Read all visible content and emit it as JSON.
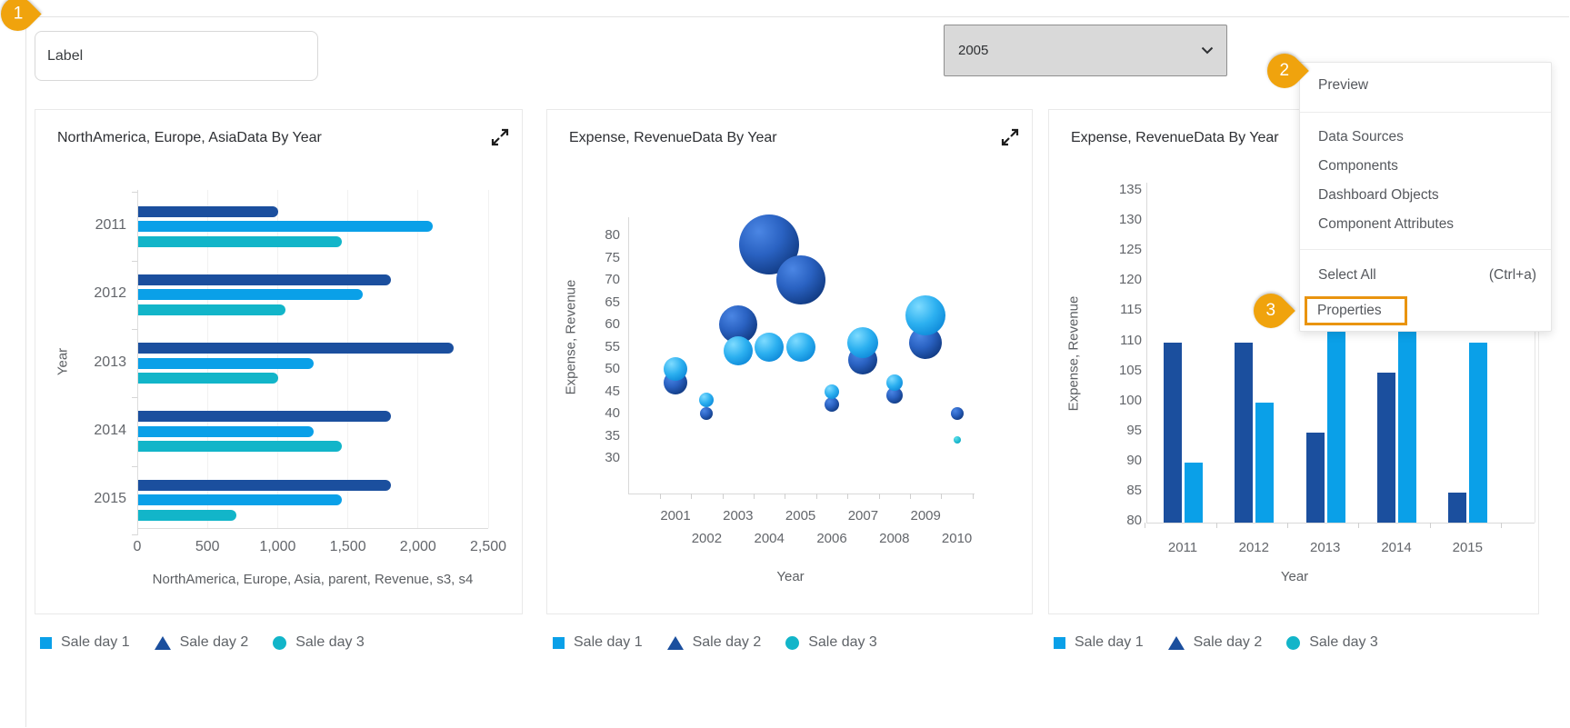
{
  "ui": {
    "topbar": {
      "label_input_value": "Label",
      "year_select_value": "2005"
    },
    "annotations": {
      "badge1": "1",
      "badge2": "2",
      "badge3": "3",
      "badge_color": "#f0a30d"
    },
    "context_menu": {
      "preview": "Preview",
      "items_middle": [
        "Data Sources",
        "Components",
        "Dashboard Objects",
        "Component Attributes"
      ],
      "select_all": "Select All",
      "select_all_shortcut": "(Ctrl+a)",
      "properties": "Properties",
      "highlight_color": "#e9940f"
    },
    "legend_items": [
      {
        "label": "Sale day 1",
        "shape": "square",
        "color": "#0aa0e8"
      },
      {
        "label": "Sale day 2",
        "shape": "triangle",
        "color": "#1b4f9e"
      },
      {
        "label": "Sale day 3",
        "shape": "circle",
        "color": "#12b5c9"
      }
    ]
  },
  "charts": [
    {
      "title": "NorthAmerica, Europe, AsiaData By Year",
      "y_axis_label": "Year",
      "x_axis_label": "NorthAmerica, Europe, Asia, parent, Revenue, s3, s4",
      "chart_data": {
        "type": "bar",
        "orientation": "horizontal",
        "categories": [
          "2011",
          "2012",
          "2013",
          "2014",
          "2015"
        ],
        "series": [
          {
            "name": "Sale day 2",
            "color": "#1b4f9e",
            "values": [
              1000,
              1800,
              2250,
              1800,
              1800
            ]
          },
          {
            "name": "Sale day 1",
            "color": "#0aa0e8",
            "values": [
              2100,
              1600,
              1250,
              1250,
              1450
            ]
          },
          {
            "name": "Sale day 3",
            "color": "#12b5c9",
            "values": [
              1450,
              1050,
              1000,
              1450,
              700
            ]
          }
        ],
        "x_tick_labels": [
          "0",
          "500",
          "1,000",
          "1,500",
          "2,000",
          "2,500"
        ],
        "xlim": [
          0,
          2500
        ],
        "grid": true,
        "legend_position": "bottom"
      }
    },
    {
      "title": "Expense, RevenueData By Year",
      "y_axis_label": "Expense, Revenue",
      "x_axis_label": "Year",
      "chart_data": {
        "type": "bubble",
        "x_tick_labels_row1": [
          "2001",
          "2003",
          "2005",
          "2007",
          "2009"
        ],
        "x_tick_labels_row2": [
          "2002",
          "2004",
          "2006",
          "2008",
          "2010"
        ],
        "y_tick_labels": [
          "80",
          "75",
          "70",
          "65",
          "60",
          "55",
          "50",
          "45",
          "40",
          "35",
          "30"
        ],
        "xlim": [
          2000.5,
          2010.5
        ],
        "ylim": [
          30,
          80
        ],
        "grid": false,
        "legend_position": "bottom",
        "series": [
          {
            "name": "Sale day 2",
            "color": "#1b4f9e",
            "points": [
              {
                "x": 2001,
                "y": 47,
                "r": 13
              },
              {
                "x": 2002,
                "y": 40,
                "r": 7
              },
              {
                "x": 2003,
                "y": 60,
                "r": 21
              },
              {
                "x": 2004,
                "y": 78,
                "r": 33
              },
              {
                "x": 2005,
                "y": 70,
                "r": 27
              },
              {
                "x": 2006,
                "y": 42,
                "r": 8
              },
              {
                "x": 2007,
                "y": 52,
                "r": 16
              },
              {
                "x": 2008,
                "y": 44,
                "r": 9
              },
              {
                "x": 2009,
                "y": 56,
                "r": 18
              },
              {
                "x": 2010,
                "y": 40,
                "r": 7
              }
            ]
          },
          {
            "name": "Sale day 1",
            "color": "#0aa0e8",
            "points": [
              {
                "x": 2001,
                "y": 50,
                "r": 13
              },
              {
                "x": 2002,
                "y": 43,
                "r": 8
              },
              {
                "x": 2003,
                "y": 54,
                "r": 16
              },
              {
                "x": 2004,
                "y": 55,
                "r": 16
              },
              {
                "x": 2005,
                "y": 55,
                "r": 16
              },
              {
                "x": 2006,
                "y": 45,
                "r": 8
              },
              {
                "x": 2007,
                "y": 56,
                "r": 17
              },
              {
                "x": 2008,
                "y": 47,
                "r": 9
              },
              {
                "x": 2009,
                "y": 62,
                "r": 22
              }
            ]
          },
          {
            "name": "Sale day 3",
            "color": "#12b5c9",
            "points": [
              {
                "x": 2010,
                "y": 34,
                "r": 4
              }
            ]
          }
        ]
      }
    },
    {
      "title": "Expense, RevenueData By Year",
      "y_axis_label": "Expense, Revenue",
      "x_axis_label": "Year",
      "chart_data": {
        "type": "bar",
        "orientation": "vertical",
        "categories": [
          "2011",
          "2012",
          "2013",
          "2014",
          "2015"
        ],
        "series": [
          {
            "name": "Sale day 2",
            "color": "#1b4f9e",
            "values": [
              110,
              110,
              95,
              105,
              85
            ]
          },
          {
            "name": "Sale day 1",
            "color": "#0aa0e8",
            "values": [
              90,
              100,
              115,
              115,
              110
            ]
          }
        ],
        "y_tick_labels": [
          "135",
          "130",
          "125",
          "120",
          "115",
          "110",
          "105",
          "100",
          "95",
          "90",
          "85",
          "80"
        ],
        "ylim": [
          80,
          135
        ],
        "grid": false,
        "legend_position": "bottom"
      }
    }
  ]
}
